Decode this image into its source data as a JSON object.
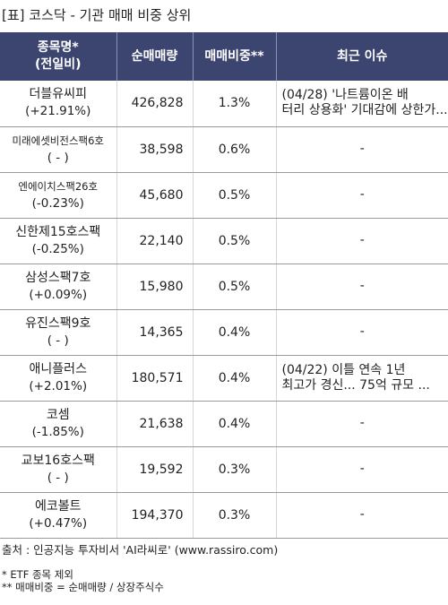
{
  "title": "[표] 코스닥 - 기관 매매 비중 상위",
  "headers": {
    "name": "종목명*\n(전일비)",
    "volume": "순매매량",
    "ratio": "매매비중**",
    "issue": "최근 이슈"
  },
  "rows": [
    {
      "name": "더블유씨피",
      "change": "(+21.91%)",
      "volume": "426,828",
      "ratio": "1.3%",
      "issue": "(04/28) '나트륨이온 배\n터리 상용화' 기대감에 상한가..."
    },
    {
      "name": "미래에셋비전스팩6호",
      "change": "( - )",
      "volume": "38,598",
      "ratio": "0.6%",
      "issue": "-"
    },
    {
      "name": "엔에이치스팩26호",
      "change": "(-0.23%)",
      "volume": "45,680",
      "ratio": "0.5%",
      "issue": "-"
    },
    {
      "name": "신한제15호스팩",
      "change": "(-0.25%)",
      "volume": "22,140",
      "ratio": "0.5%",
      "issue": "-"
    },
    {
      "name": "삼성스팩7호",
      "change": "(+0.09%)",
      "volume": "15,980",
      "ratio": "0.5%",
      "issue": "-"
    },
    {
      "name": "유진스팩9호",
      "change": "( - )",
      "volume": "14,365",
      "ratio": "0.4%",
      "issue": "-"
    },
    {
      "name": "애니플러스",
      "change": "(+2.01%)",
      "volume": "180,571",
      "ratio": "0.4%",
      "issue": "(04/22) 이틀 연속 1년\n최고가 경신... 75억 규모 ..."
    },
    {
      "name": "코셈",
      "change": "(-1.85%)",
      "volume": "21,638",
      "ratio": "0.4%",
      "issue": "-"
    },
    {
      "name": "교보16호스팩",
      "change": "( - )",
      "volume": "19,592",
      "ratio": "0.3%",
      "issue": "-"
    },
    {
      "name": "에코볼트",
      "change": "(+0.47%)",
      "volume": "194,370",
      "ratio": "0.3%",
      "issue": "-"
    }
  ],
  "footer": {
    "source": "출처 : 인공지능 투자비서 'AI라씨로' (www.rassiro.com)",
    "note1": "* ETF 종목 제외",
    "note2": "** 매매비중 = 순매매량 / 상장주식수"
  },
  "colors": {
    "header_bg": "#3c4470",
    "ratio_text": "#e8261c"
  }
}
